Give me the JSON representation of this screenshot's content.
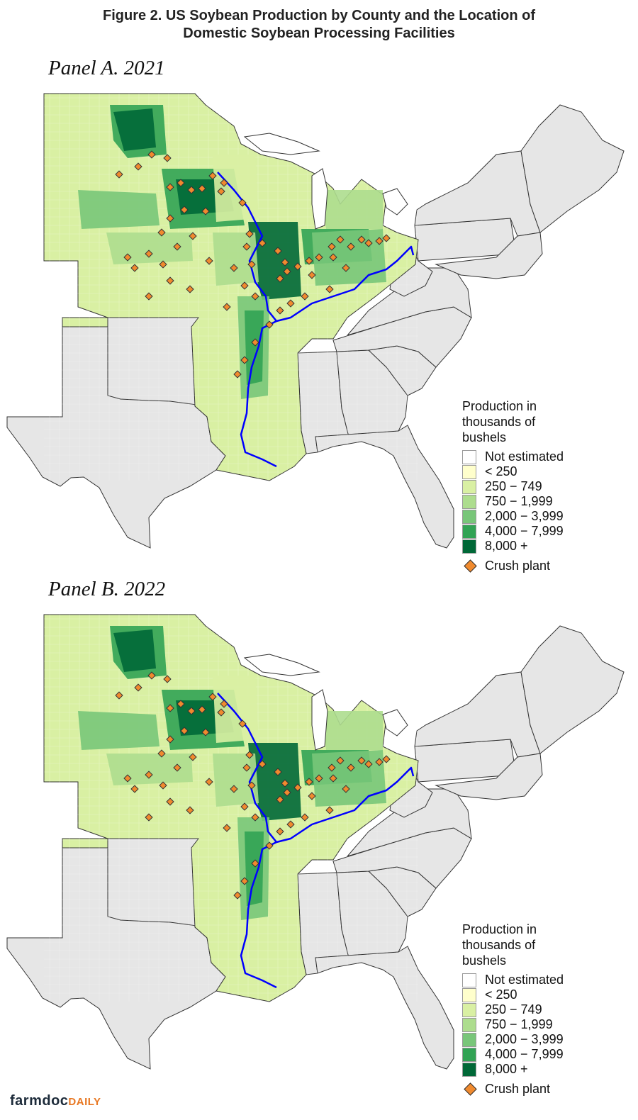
{
  "title": {
    "line1": "Figure 2. US Soybean Production by County and the Location of",
    "line2": "Domestic Soybean Processing Facilities"
  },
  "panels": [
    {
      "label": "Panel A. 2021",
      "crush_plant_count_shown": 59
    },
    {
      "label": "Panel B. 2022",
      "crush_plant_count_shown": 59
    }
  ],
  "legend": {
    "title_line1": "Production in",
    "title_line2": "thousands of",
    "title_line3": "bushels",
    "classes": [
      {
        "label": "Not estimated",
        "color": "#ffffff"
      },
      {
        "label": "< 250",
        "color": "#ffffcc"
      },
      {
        "label": "250 − 749",
        "color": "#d9f0a3"
      },
      {
        "label": "750 − 1,999",
        "color": "#addd8e"
      },
      {
        "label": "2,000 − 3,999",
        "color": "#78c679"
      },
      {
        "label": "4,000 − 7,999",
        "color": "#31a354"
      },
      {
        "label": "8,000 +",
        "color": "#006837"
      }
    ],
    "crush_label": "Crush plant",
    "crush_color": "#f08a2e"
  },
  "colors": {
    "non_study_state": "#e6e6e6",
    "river": "#0000ff",
    "border": "#333333"
  },
  "brand": {
    "name": "farmdoc",
    "suffix": "DAILY"
  }
}
